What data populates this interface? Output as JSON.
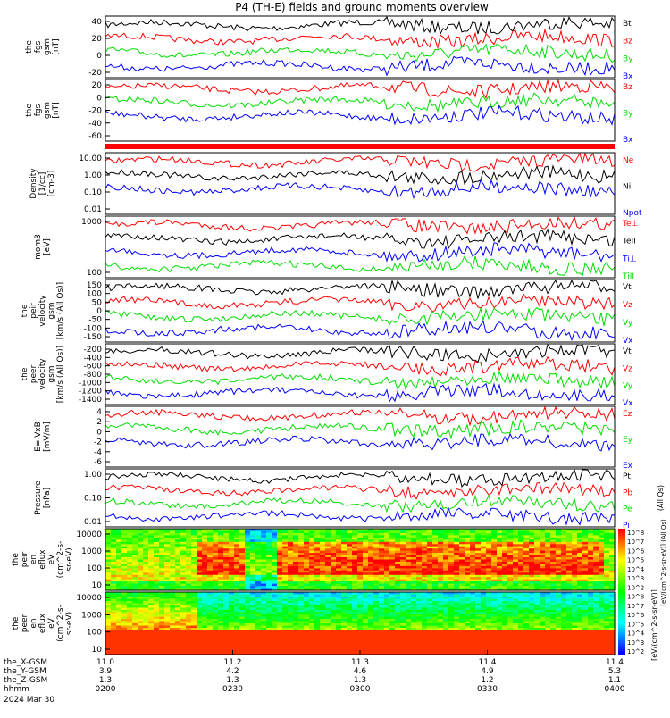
{
  "title": "P4 (TH-E) fields and ground moments overview",
  "colors": {
    "black": "#000000",
    "red": "#ff0000",
    "green": "#00dd00",
    "blue": "#0000ff"
  },
  "chart_data": [
    {
      "type": "line",
      "panel": "fgs-gsm-1",
      "ylabel": [
        "the",
        "fgs",
        "gsm",
        "[nT]"
      ],
      "yticks": [
        "40",
        "20",
        "0",
        "-20"
      ],
      "legend": [
        "Bt",
        "Bz",
        "By",
        "Bx"
      ],
      "legend_colors": [
        "black",
        "red",
        "green",
        "blue"
      ]
    },
    {
      "type": "line",
      "panel": "fgs-gsm-2",
      "ylabel": [
        "the",
        "fgs",
        "gsm",
        "[nT]"
      ],
      "yticks": [
        "20",
        "0",
        "-20",
        "-40",
        "-60"
      ],
      "legend": [
        "Bz",
        "By",
        "Bx"
      ],
      "legend_colors": [
        "red",
        "green",
        "blue"
      ]
    },
    {
      "type": "bar",
      "panel": "flag-bar",
      "color": "red"
    },
    {
      "type": "line",
      "panel": "density",
      "ylabel": [
        "Density",
        "[1/cc]",
        "[cm-3]"
      ],
      "yticks": [
        "10.00",
        "1.00",
        "0.10",
        "0.01"
      ],
      "legend": [
        "Ne",
        "Ni",
        "Npot"
      ],
      "legend_colors": [
        "red",
        "black",
        "blue"
      ],
      "log": true
    },
    {
      "type": "line",
      "panel": "temperature",
      "ylabel": [
        "mom3",
        "[eV]"
      ],
      "yticks": [
        "1000",
        "100"
      ],
      "legend": [
        "Te⊥",
        "TeII",
        "Ti⊥",
        "TiII"
      ],
      "legend_colors": [
        "red",
        "black",
        "blue",
        "green"
      ],
      "log": true
    },
    {
      "type": "line",
      "panel": "peir-velocity",
      "ylabel": [
        "the",
        "peir",
        "velocity",
        "gsm",
        "[km/s (All Qs)]"
      ],
      "yticks": [
        "150",
        "100",
        "50",
        "0",
        "-50",
        "-100",
        "-150"
      ],
      "legend": [
        "Vt",
        "Vz",
        "Vy",
        "Vx"
      ],
      "legend_colors": [
        "black",
        "red",
        "green",
        "blue"
      ]
    },
    {
      "type": "line",
      "panel": "peer-velocity",
      "ylabel": [
        "the",
        "peer",
        "velocity",
        "gsm",
        "[km/s (All Qs)]"
      ],
      "yticks": [
        "-200",
        "-400",
        "-600",
        "-800",
        "-1000",
        "-1200",
        "-1400"
      ],
      "legend": [
        "Vt",
        "Vz",
        "Vy",
        "Vx"
      ],
      "legend_colors": [
        "black",
        "red",
        "green",
        "blue"
      ]
    },
    {
      "type": "line",
      "panel": "efield",
      "ylabel": [
        "E=-VxB",
        "[mV/m]"
      ],
      "yticks": [
        "4",
        "2",
        "0",
        "-2",
        "-4",
        "-6"
      ],
      "legend": [
        "Ez",
        "Ey",
        "Ex"
      ],
      "legend_colors": [
        "red",
        "green",
        "blue"
      ]
    },
    {
      "type": "line",
      "panel": "pressure",
      "ylabel": [
        "Pressure",
        "[nPa]"
      ],
      "yticks": [
        "1.00",
        "0.10",
        "0.01"
      ],
      "legend": [
        "Pt",
        "Pb",
        "Pe",
        "Pi"
      ],
      "legend_colors": [
        "black",
        "red",
        "green",
        "blue"
      ],
      "side_label": "(All Qs)",
      "log": true
    },
    {
      "type": "heatmap",
      "panel": "peir-spectrogram",
      "ylabel": [
        "the",
        "peir",
        "en",
        "eflux",
        "eV",
        "(cm^2-s-",
        "sr-eV)"
      ],
      "yticks": [
        "10000",
        "1000",
        "100",
        "10"
      ]
    },
    {
      "type": "heatmap",
      "panel": "peer-spectrogram",
      "ylabel": [
        "the",
        "peer",
        "en",
        "eflux",
        "eV",
        "(cm^2-s-",
        "sr-eV)"
      ],
      "yticks": [
        "10000",
        "1000",
        "100",
        "10"
      ]
    }
  ],
  "colorbar": {
    "ticks": [
      "10^8",
      "10^7",
      "10^6",
      "10^5",
      "10^4",
      "10^3",
      "10^2",
      "10^8",
      "10^7",
      "10^6",
      "10^5",
      "10^4",
      "10^3",
      "10^2"
    ],
    "label": "[eV/(cm^2-s-sr-eV)]",
    "label2": "[eV/(cm^2-s-sr-eV)] (All Qs)"
  },
  "xaxis": {
    "row_labels": [
      "the_X-GSM",
      "the_Y-GSM",
      "the_Z-GSM",
      "hhmm",
      "2024 Mar 30"
    ],
    "columns": [
      {
        "x": "11.0",
        "y": "3.9",
        "z": "1.3",
        "t": "0200"
      },
      {
        "x": "11.2",
        "y": "4.2",
        "z": "1.3",
        "t": "0230"
      },
      {
        "x": "11.3",
        "y": "4.6",
        "z": "1.3",
        "t": "0300"
      },
      {
        "x": "11.4",
        "y": "4.9",
        "z": "1.2",
        "t": "0330"
      },
      {
        "x": "11.4",
        "y": "5.3",
        "z": "1.1",
        "t": "0400"
      }
    ]
  }
}
